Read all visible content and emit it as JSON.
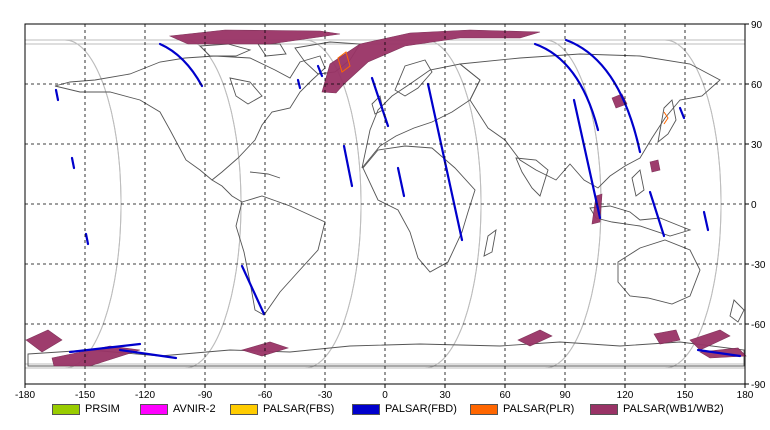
{
  "map": {
    "x_ticks": [
      "-180",
      "-150",
      "-120",
      "-90",
      "-60",
      "-30",
      "0",
      "30",
      "60",
      "90",
      "120",
      "150",
      "180"
    ],
    "y_ticks": [
      "90",
      "60",
      "30",
      "0",
      "-30",
      "-60",
      "-90"
    ],
    "lon_range": [
      -180,
      180
    ],
    "lat_range": [
      -90,
      90
    ],
    "grid": "dashed",
    "colors": {
      "frame": "#000000",
      "grid": "#000000",
      "coast": "#555555",
      "orbit": "#bdbdbd"
    }
  },
  "legend": {
    "items": [
      {
        "label": "PRSIM",
        "color": "#99cc00"
      },
      {
        "label": "AVNIR-2",
        "color": "#ff00ff"
      },
      {
        "label": "PALSAR(FBS)",
        "color": "#ffcc00"
      },
      {
        "label": "PALSAR(FBD)",
        "color": "#0000cc"
      },
      {
        "label": "PALSAR(PLR)",
        "color": "#ff6600"
      },
      {
        "label": "PALSAR(WB1/WB2)",
        "color": "#993366"
      }
    ]
  }
}
